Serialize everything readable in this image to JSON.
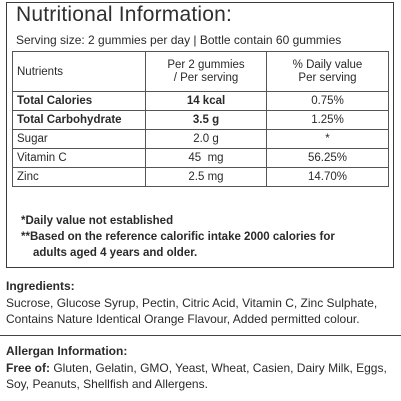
{
  "title": "Nutritional Information:",
  "serving": "Serving size: 2 gummies per day | Bottle contain 60 gummies",
  "table": {
    "header": {
      "nutrients": "Nutrients",
      "per_serving_line1": "Per 2 gummies",
      "per_serving_line2": "/ Per serving",
      "dv_line1": "% Daily value",
      "dv_line2": "Per serving"
    },
    "rows": [
      {
        "name": "Total Calories",
        "amount": "14 kcal",
        "dv": "0.75%",
        "bold": true
      },
      {
        "name": "Total Carbohydrate",
        "amount": "3.5 g",
        "dv": "1.25%",
        "bold": true
      },
      {
        "name": "Sugar",
        "amount": "2.0 g",
        "dv": "*",
        "bold": false
      },
      {
        "name": "Vitamin C",
        "amount": "45  mg",
        "dv": "56.25%",
        "bold": false
      },
      {
        "name": "Zinc",
        "amount": "2.5 mg",
        "dv": "14.70%",
        "bold": false
      }
    ]
  },
  "notes": {
    "line1": "*Daily value not established",
    "line2": "**Based on the reference calorific intake 2000 calories for",
    "line3": "adults aged 4 years and older."
  },
  "ingredients": {
    "heading": "Ingredients:",
    "text": "Sucrose, Glucose Syrup, Pectin, Citric Acid, Vitamin C, Zinc Sulphate, Contains Nature Identical Orange Flavour, Added permitted colour."
  },
  "allergen": {
    "heading": "Allergan Information:",
    "free_of_label": "Free of:",
    "text": " Gluten, Gelatin, GMO, Yeast, Wheat, Casien, Dairy Milk, Eggs, Soy, Peanuts, Shellfish and Allergens."
  }
}
